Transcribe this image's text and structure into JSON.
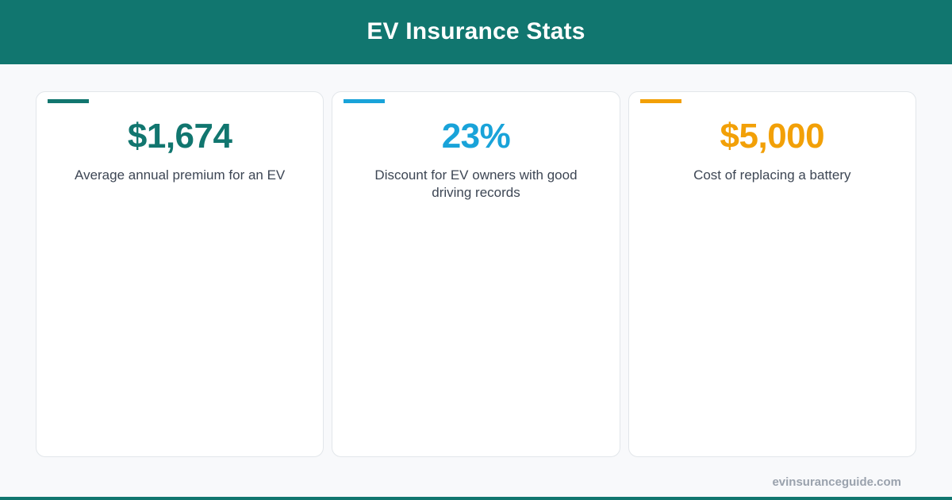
{
  "header": {
    "title": "EV Insurance Stats",
    "background_color": "#11766f"
  },
  "cards": [
    {
      "value": "$1,674",
      "label": "Average annual premium for an EV",
      "accent_color": "#11766f"
    },
    {
      "value": "23%",
      "label": "Discount for EV owners with good driving records",
      "accent_color": "#19a3d9"
    },
    {
      "value": "$5,000",
      "label": "Cost of replacing a battery",
      "accent_color": "#f2a007"
    }
  ],
  "footer": {
    "url": "evinsuranceguide.com"
  }
}
